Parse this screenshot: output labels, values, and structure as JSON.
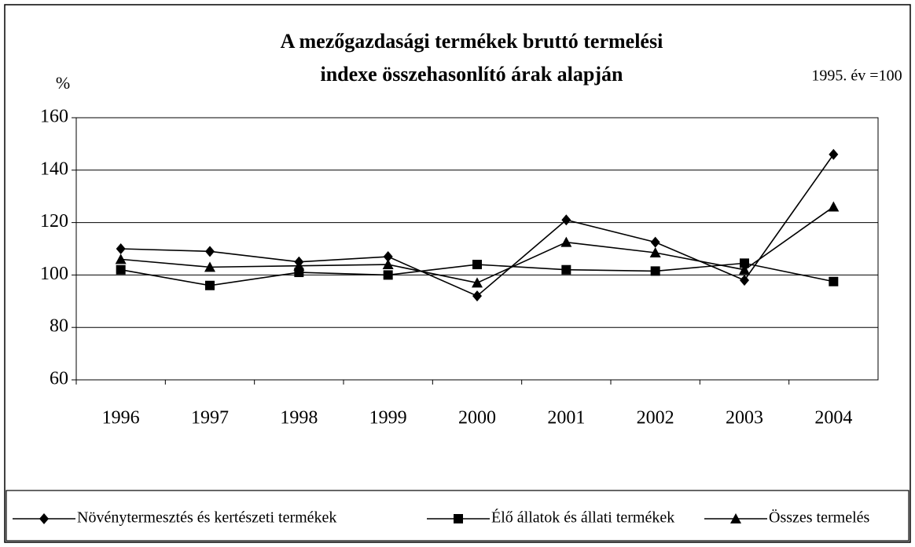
{
  "chart_data": {
    "type": "line",
    "title": "A mezőgazdasági termékek bruttó termelési indexe összehasonlító árak alapján",
    "title_lines": [
      "A mezőgazdasági termékek bruttó termelési",
      "indexe összehasonlító árak alapján"
    ],
    "y_label": "%",
    "annotation": "1995. év =100",
    "categories": [
      "1996",
      "1997",
      "1998",
      "1999",
      "2000",
      "2001",
      "2002",
      "2003",
      "2004"
    ],
    "series": [
      {
        "name": "Növénytermesztés és kertészeti termékek",
        "color": "#000000",
        "marker": "diamond",
        "values": [
          110,
          109,
          105,
          107,
          92,
          121,
          112.5,
          98,
          146
        ]
      },
      {
        "name": "Élő állatok és állati termékek",
        "color": "#000000",
        "marker": "square",
        "values": [
          102,
          96,
          101,
          100,
          104,
          102,
          101.5,
          104.5,
          97.5
        ]
      },
      {
        "name": "Összes termelés",
        "color": "#000000",
        "marker": "triangle",
        "values": [
          106,
          103,
          103.5,
          104,
          97,
          112.5,
          108.5,
          102,
          126
        ]
      }
    ],
    "ylim": [
      60,
      160
    ],
    "yticks": [
      60,
      80,
      100,
      120,
      140,
      160
    ],
    "grid": true,
    "legend": "bottom"
  }
}
